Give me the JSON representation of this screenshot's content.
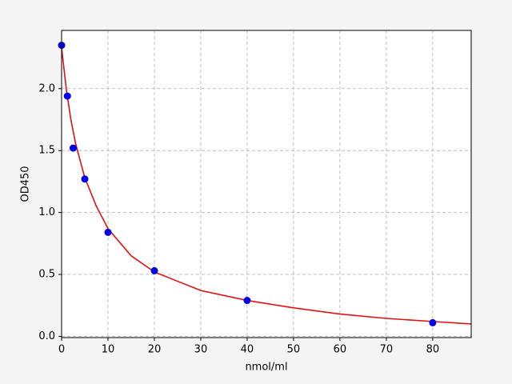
{
  "chart_data": {
    "type": "scatter",
    "xlabel": "nmol/ml",
    "ylabel": "OD450",
    "xlim": [
      0,
      88.3
    ],
    "ylim": [
      -0.01,
      2.47
    ],
    "xticks": [
      0,
      10,
      20,
      30,
      40,
      50,
      60,
      70,
      80
    ],
    "yticks": [
      {
        "value": 0,
        "label": "0.0"
      },
      0.5,
      {
        "value": 1,
        "label": "1.0"
      },
      1.5,
      {
        "value": 2,
        "label": "2.0"
      }
    ],
    "grid": true,
    "series": [
      {
        "type": "line",
        "color": "#e31010",
        "x": [
          0,
          1,
          2,
          3,
          5,
          7.5,
          10,
          15,
          20,
          30,
          40,
          50,
          60,
          70,
          80,
          88.3
        ],
        "values": [
          2.33,
          2.0,
          1.75,
          1.56,
          1.28,
          1.05,
          0.87,
          0.65,
          0.52,
          0.37,
          0.29,
          0.23,
          0.18,
          0.145,
          0.12,
          0.1
        ]
      },
      {
        "type": "scatter",
        "color": "#0000ee",
        "x": [
          0,
          1.25,
          2.5,
          5,
          10,
          20,
          40,
          80
        ],
        "values": [
          2.35,
          1.94,
          1.52,
          1.27,
          0.84,
          0.53,
          0.29,
          0.11
        ]
      }
    ]
  }
}
